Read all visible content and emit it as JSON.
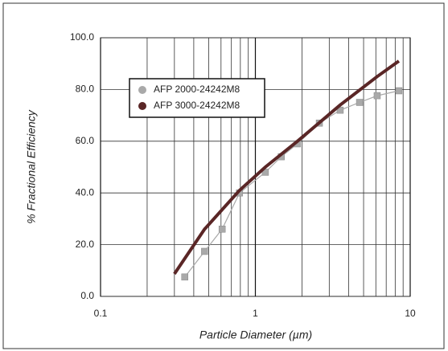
{
  "chart_data": {
    "type": "line",
    "xlabel": "Particle Diameter (µm)",
    "ylabel": "% Fractional Efficiency",
    "xscale": "log",
    "grid": true,
    "legend": "upper left",
    "xlim": [
      0.1,
      10
    ],
    "xticks": [
      0.1,
      1,
      10
    ],
    "ylim": [
      0,
      100
    ],
    "yticks": [
      {
        "value": 0,
        "label": "0.0"
      },
      {
        "value": 20,
        "label": "20.0"
      },
      {
        "value": 40,
        "label": "40.0"
      },
      {
        "value": 60,
        "label": "60.0"
      },
      {
        "value": 80,
        "label": "80.0"
      },
      {
        "value": 100,
        "label": "100.0"
      }
    ],
    "series": [
      {
        "name": "AFP 2000-24242M8",
        "color": "#a9a9a9",
        "marker": "square",
        "x": [
          0.35,
          0.47,
          0.61,
          0.79,
          1.16,
          1.47,
          1.87,
          2.59,
          3.53,
          4.71,
          6.12,
          8.45
        ],
        "values": [
          7.5,
          17.4,
          26,
          40,
          48,
          54,
          59,
          67,
          72,
          75,
          77.6,
          79.5
        ]
      },
      {
        "name": "AFP 3000-24242M8",
        "color": "#5a2626",
        "marker": "none",
        "x": [
          0.3,
          0.47,
          0.79,
          1.16,
          1.87,
          3.53,
          6.12,
          8.45
        ],
        "values": [
          8.7,
          26,
          41,
          50,
          60,
          74,
          85,
          91
        ]
      }
    ]
  }
}
